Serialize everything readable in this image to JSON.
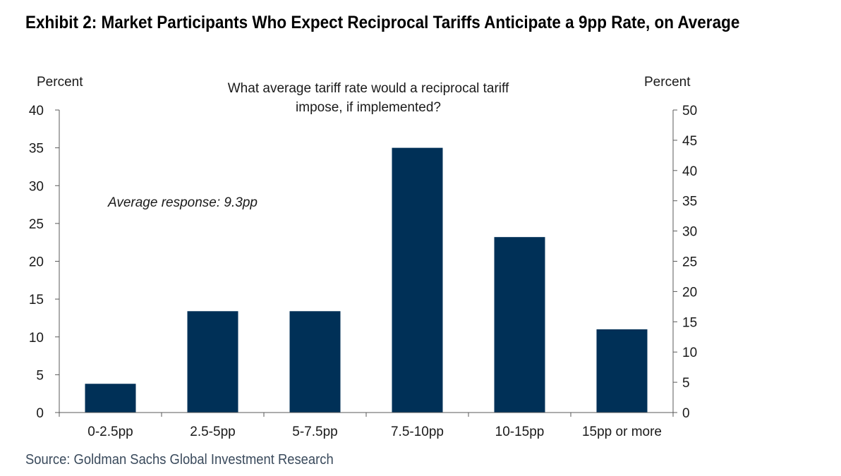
{
  "exhibit_title": "Exhibit 2: Market Participants Who Expect Reciprocal Tariffs Anticipate a 9pp Rate, on Average",
  "source": "Source: Goldman Sachs Global Investment Research",
  "colors": {
    "bar": "#003057",
    "axis": "#595959"
  },
  "chart_data": {
    "type": "bar",
    "title_lines": [
      "What average  tariff rate would a reciprocal tariff",
      "impose, if implemented?"
    ],
    "annotation": "Average response:  9.3pp",
    "categories": [
      "0-2.5pp",
      "2.5-5pp",
      "5-7.5pp",
      "7.5-10pp",
      "10-15pp",
      "15pp or more"
    ],
    "values": [
      3.8,
      13.4,
      13.4,
      35.0,
      23.2,
      11.0
    ],
    "left_axis": {
      "label": "Percent",
      "ylim": [
        0,
        40
      ],
      "ticks": [
        0,
        5,
        10,
        15,
        20,
        25,
        30,
        35,
        40
      ]
    },
    "right_axis": {
      "label": "Percent",
      "ylim": [
        0,
        50
      ],
      "ticks": [
        0,
        5,
        10,
        15,
        20,
        25,
        30,
        35,
        40,
        45,
        50
      ]
    },
    "grid": false,
    "legend": "none"
  }
}
